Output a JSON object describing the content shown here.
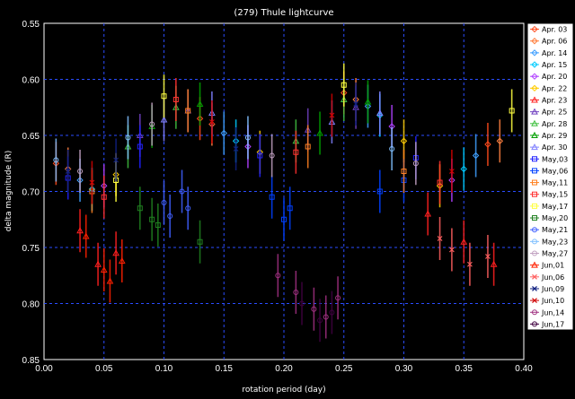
{
  "chart_data": {
    "type": "scatter",
    "title": "(279) Thule lightcurve",
    "xlabel": "rotation period (day)",
    "ylabel": "delta magnitude (R)",
    "xlim": [
      0.0,
      0.4
    ],
    "ylim": [
      0.85,
      0.55
    ],
    "y_inverted": true,
    "x_ticks": [
      "0.00",
      "0.05",
      "0.10",
      "0.15",
      "0.20",
      "0.25",
      "0.30",
      "0.35",
      "0.40"
    ],
    "y_ticks": [
      "0.55",
      "0.60",
      "0.65",
      "0.70",
      "0.75",
      "0.80",
      "0.85"
    ],
    "grid": "dashed",
    "legend_position": "right",
    "series": [
      {
        "name": "Apr. 03",
        "color": "#ff4a1c",
        "marker": "diamond",
        "x": [
          0.01,
          0.13,
          0.25,
          0.37
        ],
        "y": [
          0.675,
          0.635,
          0.612,
          0.658
        ]
      },
      {
        "name": "Apr. 06",
        "color": "#ff8040",
        "marker": "diamond",
        "x": [
          0.02,
          0.14,
          0.26,
          0.38
        ],
        "y": [
          0.68,
          0.64,
          0.618,
          0.655
        ]
      },
      {
        "name": "Apr. 14",
        "color": "#40a0ff",
        "marker": "diamond",
        "x": [
          0.03,
          0.15,
          0.27,
          0.36
        ],
        "y": [
          0.69,
          0.648,
          0.624,
          0.668
        ]
      },
      {
        "name": "Apr. 15",
        "color": "#00ccff",
        "marker": "diamond",
        "x": [
          0.04,
          0.16,
          0.28,
          0.35
        ],
        "y": [
          0.698,
          0.655,
          0.632,
          0.68
        ]
      },
      {
        "name": "Apr. 20",
        "color": "#b040ff",
        "marker": "diamond",
        "x": [
          0.05,
          0.17,
          0.29,
          0.34
        ],
        "y": [
          0.695,
          0.66,
          0.642,
          0.69
        ]
      },
      {
        "name": "Apr. 22",
        "color": "#ffcc00",
        "marker": "diamond",
        "x": [
          0.06,
          0.18,
          0.3,
          0.33
        ],
        "y": [
          0.685,
          0.665,
          0.655,
          0.695
        ]
      },
      {
        "name": "Apr. 23",
        "color": "#ff2020",
        "marker": "triangle",
        "x": [
          0.03,
          0.045,
          0.06,
          0.32,
          0.35,
          0.375
        ],
        "y": [
          0.735,
          0.765,
          0.755,
          0.72,
          0.745,
          0.765
        ]
      },
      {
        "name": "Apr. 25",
        "color": "#7040c0",
        "marker": "triangle",
        "x": [
          0.08,
          0.12,
          0.22,
          0.26
        ],
        "y": [
          0.65,
          0.628,
          0.645,
          0.625
        ]
      },
      {
        "name": "Apr. 28",
        "color": "#40c040",
        "marker": "triangle",
        "x": [
          0.07,
          0.11,
          0.21,
          0.25
        ],
        "y": [
          0.66,
          0.625,
          0.655,
          0.618
        ]
      },
      {
        "name": "Apr. 29",
        "color": "#00a000",
        "marker": "triangle",
        "x": [
          0.09,
          0.13,
          0.23,
          0.27
        ],
        "y": [
          0.642,
          0.622,
          0.648,
          0.62
        ]
      },
      {
        "name": "Apr. 30",
        "color": "#8080ff",
        "marker": "triangle",
        "x": [
          0.1,
          0.14,
          0.24,
          0.28
        ],
        "y": [
          0.636,
          0.63,
          0.638,
          0.63
        ]
      },
      {
        "name": "May,03",
        "color": "#2020ff",
        "marker": "square",
        "x": [
          0.02,
          0.08,
          0.18,
          0.31
        ],
        "y": [
          0.688,
          0.66,
          0.668,
          0.67
        ]
      },
      {
        "name": "May,06",
        "color": "#0040ff",
        "marker": "square",
        "x": [
          0.19,
          0.2,
          0.205,
          0.28,
          0.3
        ],
        "y": [
          0.705,
          0.725,
          0.715,
          0.7,
          0.69
        ]
      },
      {
        "name": "May,11",
        "color": "#ff8020",
        "marker": "square",
        "x": [
          0.04,
          0.12,
          0.22,
          0.3
        ],
        "y": [
          0.7,
          0.628,
          0.66,
          0.682
        ]
      },
      {
        "name": "May,15",
        "color": "#ff3030",
        "marker": "square",
        "x": [
          0.05,
          0.11,
          0.21,
          0.33
        ],
        "y": [
          0.705,
          0.618,
          0.665,
          0.692
        ]
      },
      {
        "name": "May,17",
        "color": "#ffff40",
        "marker": "square",
        "x": [
          0.06,
          0.1,
          0.25,
          0.39
        ],
        "y": [
          0.69,
          0.615,
          0.605,
          0.628
        ]
      },
      {
        "name": "May,20",
        "color": "#208020",
        "marker": "square",
        "x": [
          0.08,
          0.09,
          0.095,
          0.13
        ],
        "y": [
          0.715,
          0.725,
          0.73,
          0.745
        ]
      },
      {
        "name": "May,21",
        "color": "#4060ff",
        "marker": "circle",
        "x": [
          0.1,
          0.105,
          0.115,
          0.12
        ],
        "y": [
          0.71,
          0.722,
          0.7,
          0.715
        ]
      },
      {
        "name": "May,23",
        "color": "#80c0ff",
        "marker": "circle",
        "x": [
          0.01,
          0.07,
          0.17,
          0.29
        ],
        "y": [
          0.672,
          0.652,
          0.652,
          0.662
        ]
      },
      {
        "name": "May,27",
        "color": "#c0a0c0",
        "marker": "circle",
        "x": [
          0.03,
          0.09,
          0.19,
          0.31
        ],
        "y": [
          0.682,
          0.64,
          0.668,
          0.675
        ]
      },
      {
        "name": "Jun,01",
        "color": "#ff2000",
        "marker": "triangle",
        "x": [
          0.035,
          0.05,
          0.055,
          0.065
        ],
        "y": [
          0.74,
          0.77,
          0.78,
          0.762
        ]
      },
      {
        "name": "Jun,06",
        "color": "#ff6060",
        "marker": "x",
        "x": [
          0.33,
          0.34,
          0.355,
          0.37
        ],
        "y": [
          0.742,
          0.752,
          0.765,
          0.758
        ]
      },
      {
        "name": "Jun,09",
        "color": "#102080",
        "marker": "x",
        "x": [
          0.02,
          0.06,
          0.16,
          0.26
        ],
        "y": [
          0.682,
          0.672,
          0.662,
          0.622
        ]
      },
      {
        "name": "Jun,10",
        "color": "#d00000",
        "marker": "x",
        "x": [
          0.04,
          0.14,
          0.24,
          0.34
        ],
        "y": [
          0.692,
          0.638,
          0.632,
          0.682
        ]
      },
      {
        "name": "Jun,14",
        "color": "#a03080",
        "marker": "circle",
        "x": [
          0.195,
          0.21,
          0.225,
          0.235,
          0.245
        ],
        "y": [
          0.775,
          0.79,
          0.805,
          0.812,
          0.795
        ]
      },
      {
        "name": "Jun,17",
        "color": "#400040",
        "marker": "circle",
        "x": [
          0.215,
          0.23,
          0.24
        ],
        "y": [
          0.8,
          0.815,
          0.808
        ]
      }
    ]
  }
}
